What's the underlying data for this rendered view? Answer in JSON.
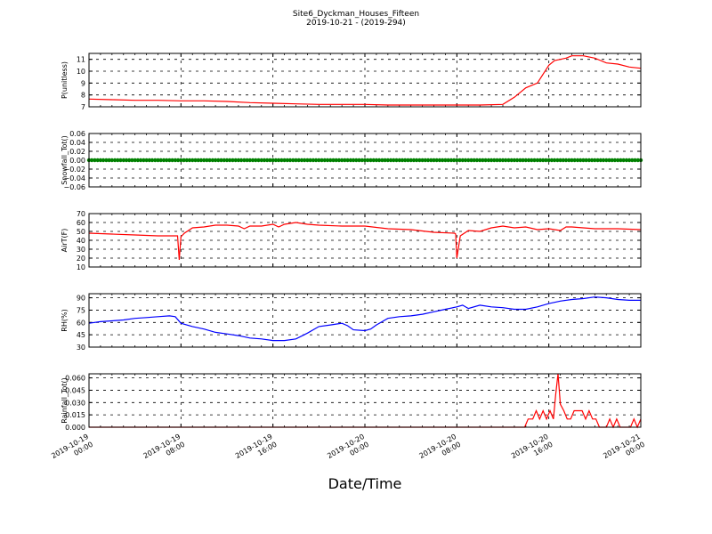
{
  "figure": {
    "title_line1": "Site6_Dyckman_Houses_Fifteen",
    "title_line2": "2019-10-21 - (2019-294)",
    "xlabel": "Date/Time"
  },
  "chart_data": [
    {
      "type": "line",
      "ylabel": "P(unitless)",
      "color": "#ff0000",
      "ylim": [
        7,
        11.5
      ],
      "yticks": [
        7,
        8,
        9,
        10,
        11
      ],
      "ytick_labels": [
        "7",
        "8",
        "9",
        "10",
        "11"
      ],
      "grid": true,
      "x_hours": [
        0,
        2,
        4,
        6,
        8,
        10,
        12,
        14,
        16,
        18,
        20,
        22,
        24,
        26,
        28,
        30,
        32,
        34,
        36,
        37,
        38,
        39,
        40,
        40.5,
        41,
        41.5,
        42,
        43,
        44,
        44.5,
        45,
        46,
        47,
        48
      ],
      "values": [
        7.65,
        7.6,
        7.55,
        7.55,
        7.5,
        7.5,
        7.45,
        7.35,
        7.3,
        7.25,
        7.2,
        7.2,
        7.2,
        7.15,
        7.15,
        7.15,
        7.15,
        7.15,
        7.2,
        7.8,
        8.6,
        9.0,
        10.5,
        10.9,
        11.0,
        11.1,
        11.3,
        11.3,
        11.1,
        10.9,
        10.7,
        10.6,
        10.35,
        10.25
      ]
    },
    {
      "type": "line",
      "ylabel": "Snowfall_Tot()",
      "color": "#008000",
      "marker": true,
      "ylim": [
        -0.06,
        0.06
      ],
      "yticks": [
        -0.06,
        -0.04,
        -0.02,
        0.0,
        0.02,
        0.04,
        0.06
      ],
      "ytick_labels": [
        "−0.06",
        "−0.04",
        "−0.02",
        "0.00",
        "0.02",
        "0.04",
        "0.06"
      ],
      "grid": true,
      "x_hours": [
        0,
        48
      ],
      "values": [
        0,
        0
      ]
    },
    {
      "type": "line",
      "ylabel": "AirT(F)",
      "color": "#ff0000",
      "ylim": [
        10,
        70
      ],
      "yticks": [
        10,
        20,
        30,
        40,
        50,
        60,
        70
      ],
      "ytick_labels": [
        "10",
        "20",
        "30",
        "40",
        "50",
        "60",
        "70"
      ],
      "grid": true,
      "x_hours": [
        0,
        2,
        4,
        6,
        7.7,
        7.85,
        8.0,
        8.3,
        9,
        10,
        11,
        12,
        13,
        13.5,
        14,
        15,
        16,
        16.5,
        17,
        18,
        19,
        20,
        22,
        24,
        26,
        28,
        30,
        31.8,
        31.9,
        32.0,
        32.3,
        33,
        34,
        35,
        36,
        37,
        38,
        39,
        40,
        41,
        41.5,
        42,
        44,
        46,
        48
      ],
      "values": [
        48,
        47,
        46,
        45,
        45,
        18,
        44,
        48,
        54,
        55,
        57,
        57,
        56,
        53,
        56,
        56,
        58,
        55,
        58,
        60,
        58,
        57,
        56,
        56,
        53,
        52,
        49,
        48,
        47,
        20,
        45,
        51,
        50,
        54,
        56,
        54,
        55,
        52,
        53,
        51,
        55,
        55,
        53,
        53,
        52
      ]
    },
    {
      "type": "line",
      "ylabel": "RH(%)",
      "color": "#0000ff",
      "ylim": [
        30,
        95
      ],
      "yticks": [
        30,
        45,
        60,
        75,
        90
      ],
      "ytick_labels": [
        "30",
        "45",
        "60",
        "75",
        "90"
      ],
      "grid": true,
      "x_hours": [
        0,
        1,
        2,
        3,
        4,
        5,
        6,
        7,
        7.5,
        8,
        9,
        10,
        11,
        12,
        13,
        14,
        15,
        16,
        17,
        18,
        19,
        20,
        21,
        22,
        22.5,
        23,
        24,
        24.5,
        25,
        26,
        27,
        28,
        29,
        30,
        31,
        32,
        32.5,
        33,
        34,
        35,
        36,
        37,
        38,
        39,
        40,
        41,
        42,
        43,
        44,
        45,
        46,
        47,
        48
      ],
      "values": [
        59,
        61,
        62,
        63,
        65,
        66,
        67,
        68,
        67,
        59,
        55,
        52,
        48,
        46,
        44,
        41,
        40,
        38,
        38,
        40,
        47,
        55,
        57,
        59,
        56,
        51,
        50,
        52,
        57,
        65,
        67,
        68,
        70,
        73,
        76,
        79,
        81,
        77,
        81,
        79,
        78,
        76,
        76,
        79,
        83,
        86,
        88,
        89,
        91,
        90,
        88,
        87,
        87
      ]
    },
    {
      "type": "line",
      "ylabel": "Rainfall_Tot()",
      "color": "#ff0000",
      "ylim": [
        0,
        0.065
      ],
      "yticks": [
        0.0,
        0.015,
        0.03,
        0.045,
        0.06
      ],
      "ytick_labels": [
        "0.000",
        "0.015",
        "0.030",
        "0.045",
        "0.060"
      ],
      "grid": true,
      "x_hours": [
        0,
        37.9,
        38.2,
        38.6,
        38.9,
        39.2,
        39.5,
        39.8,
        40.1,
        40.4,
        40.6,
        40.8,
        41.0,
        41.3,
        41.6,
        41.9,
        42.2,
        42.6,
        42.9,
        43.2,
        43.5,
        43.8,
        44.1,
        44.4,
        44.7,
        45.0,
        45.3,
        45.6,
        45.9,
        46.2,
        46.5,
        46.8,
        47.1,
        47.4,
        47.7,
        48
      ],
      "values": [
        0,
        0,
        0.01,
        0.01,
        0.02,
        0.01,
        0.02,
        0.01,
        0.02,
        0.01,
        0.04,
        0.065,
        0.028,
        0.02,
        0.01,
        0.01,
        0.02,
        0.02,
        0.02,
        0.01,
        0.02,
        0.01,
        0.01,
        0.0,
        0.0,
        0.0,
        0.01,
        0.0,
        0.01,
        0.0,
        0.0,
        0.0,
        0.0,
        0.01,
        0.0,
        0.01
      ]
    }
  ],
  "x_axis": {
    "xlim_hours": [
      0,
      48
    ],
    "tick_hours": [
      0,
      8,
      16,
      24,
      32,
      40,
      48
    ],
    "tick_labels": [
      [
        "2019-10-19",
        "00:00"
      ],
      [
        "2019-10-19",
        "08:00"
      ],
      [
        "2019-10-19",
        "16:00"
      ],
      [
        "2019-10-20",
        "00:00"
      ],
      [
        "2019-10-20",
        "08:00"
      ],
      [
        "2019-10-20",
        "16:00"
      ],
      [
        "2019-10-21",
        "00:00"
      ]
    ]
  }
}
